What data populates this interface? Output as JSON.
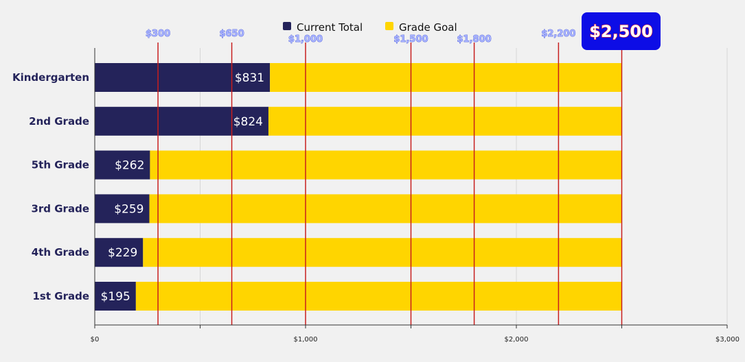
{
  "chart_data": {
    "type": "bar",
    "orientation": "horizontal",
    "stacked": true,
    "categories": [
      "Kindergarten",
      "2nd Grade",
      "5th Grade",
      "3rd Grade",
      "4th Grade",
      "1st Grade"
    ],
    "series": [
      {
        "name": "Current Total",
        "values": [
          831,
          824,
          262,
          259,
          229,
          195
        ],
        "color": "#24235a"
      },
      {
        "name": "Grade Goal",
        "values": [
          1669,
          1676,
          2238,
          2241,
          2271,
          2305
        ],
        "color": "#ffd500"
      }
    ],
    "value_labels": [
      "$831",
      "$824",
      "$262",
      "$259",
      "$229",
      "$195"
    ],
    "xlim": [
      0,
      3000
    ],
    "x_ticks": [
      0,
      1000,
      2000,
      3000
    ],
    "x_tick_labels": [
      "$0",
      "$1,000",
      "$2,000",
      "$3,000"
    ],
    "legend_position": "top-center",
    "grid": true,
    "milestones": [
      {
        "value": 300,
        "label": "$300"
      },
      {
        "value": 650,
        "label": "$650"
      },
      {
        "value": 1000,
        "label": "$1,000"
      },
      {
        "value": 1500,
        "label": "$1,500"
      },
      {
        "value": 1800,
        "label": "$1,800"
      },
      {
        "value": 2200,
        "label": "$2,200"
      },
      {
        "value": 2500,
        "label": "$2,500",
        "highlight": true
      }
    ],
    "milestone_color": "#c81e1e",
    "highlight_box_color": "#0d0de6"
  }
}
